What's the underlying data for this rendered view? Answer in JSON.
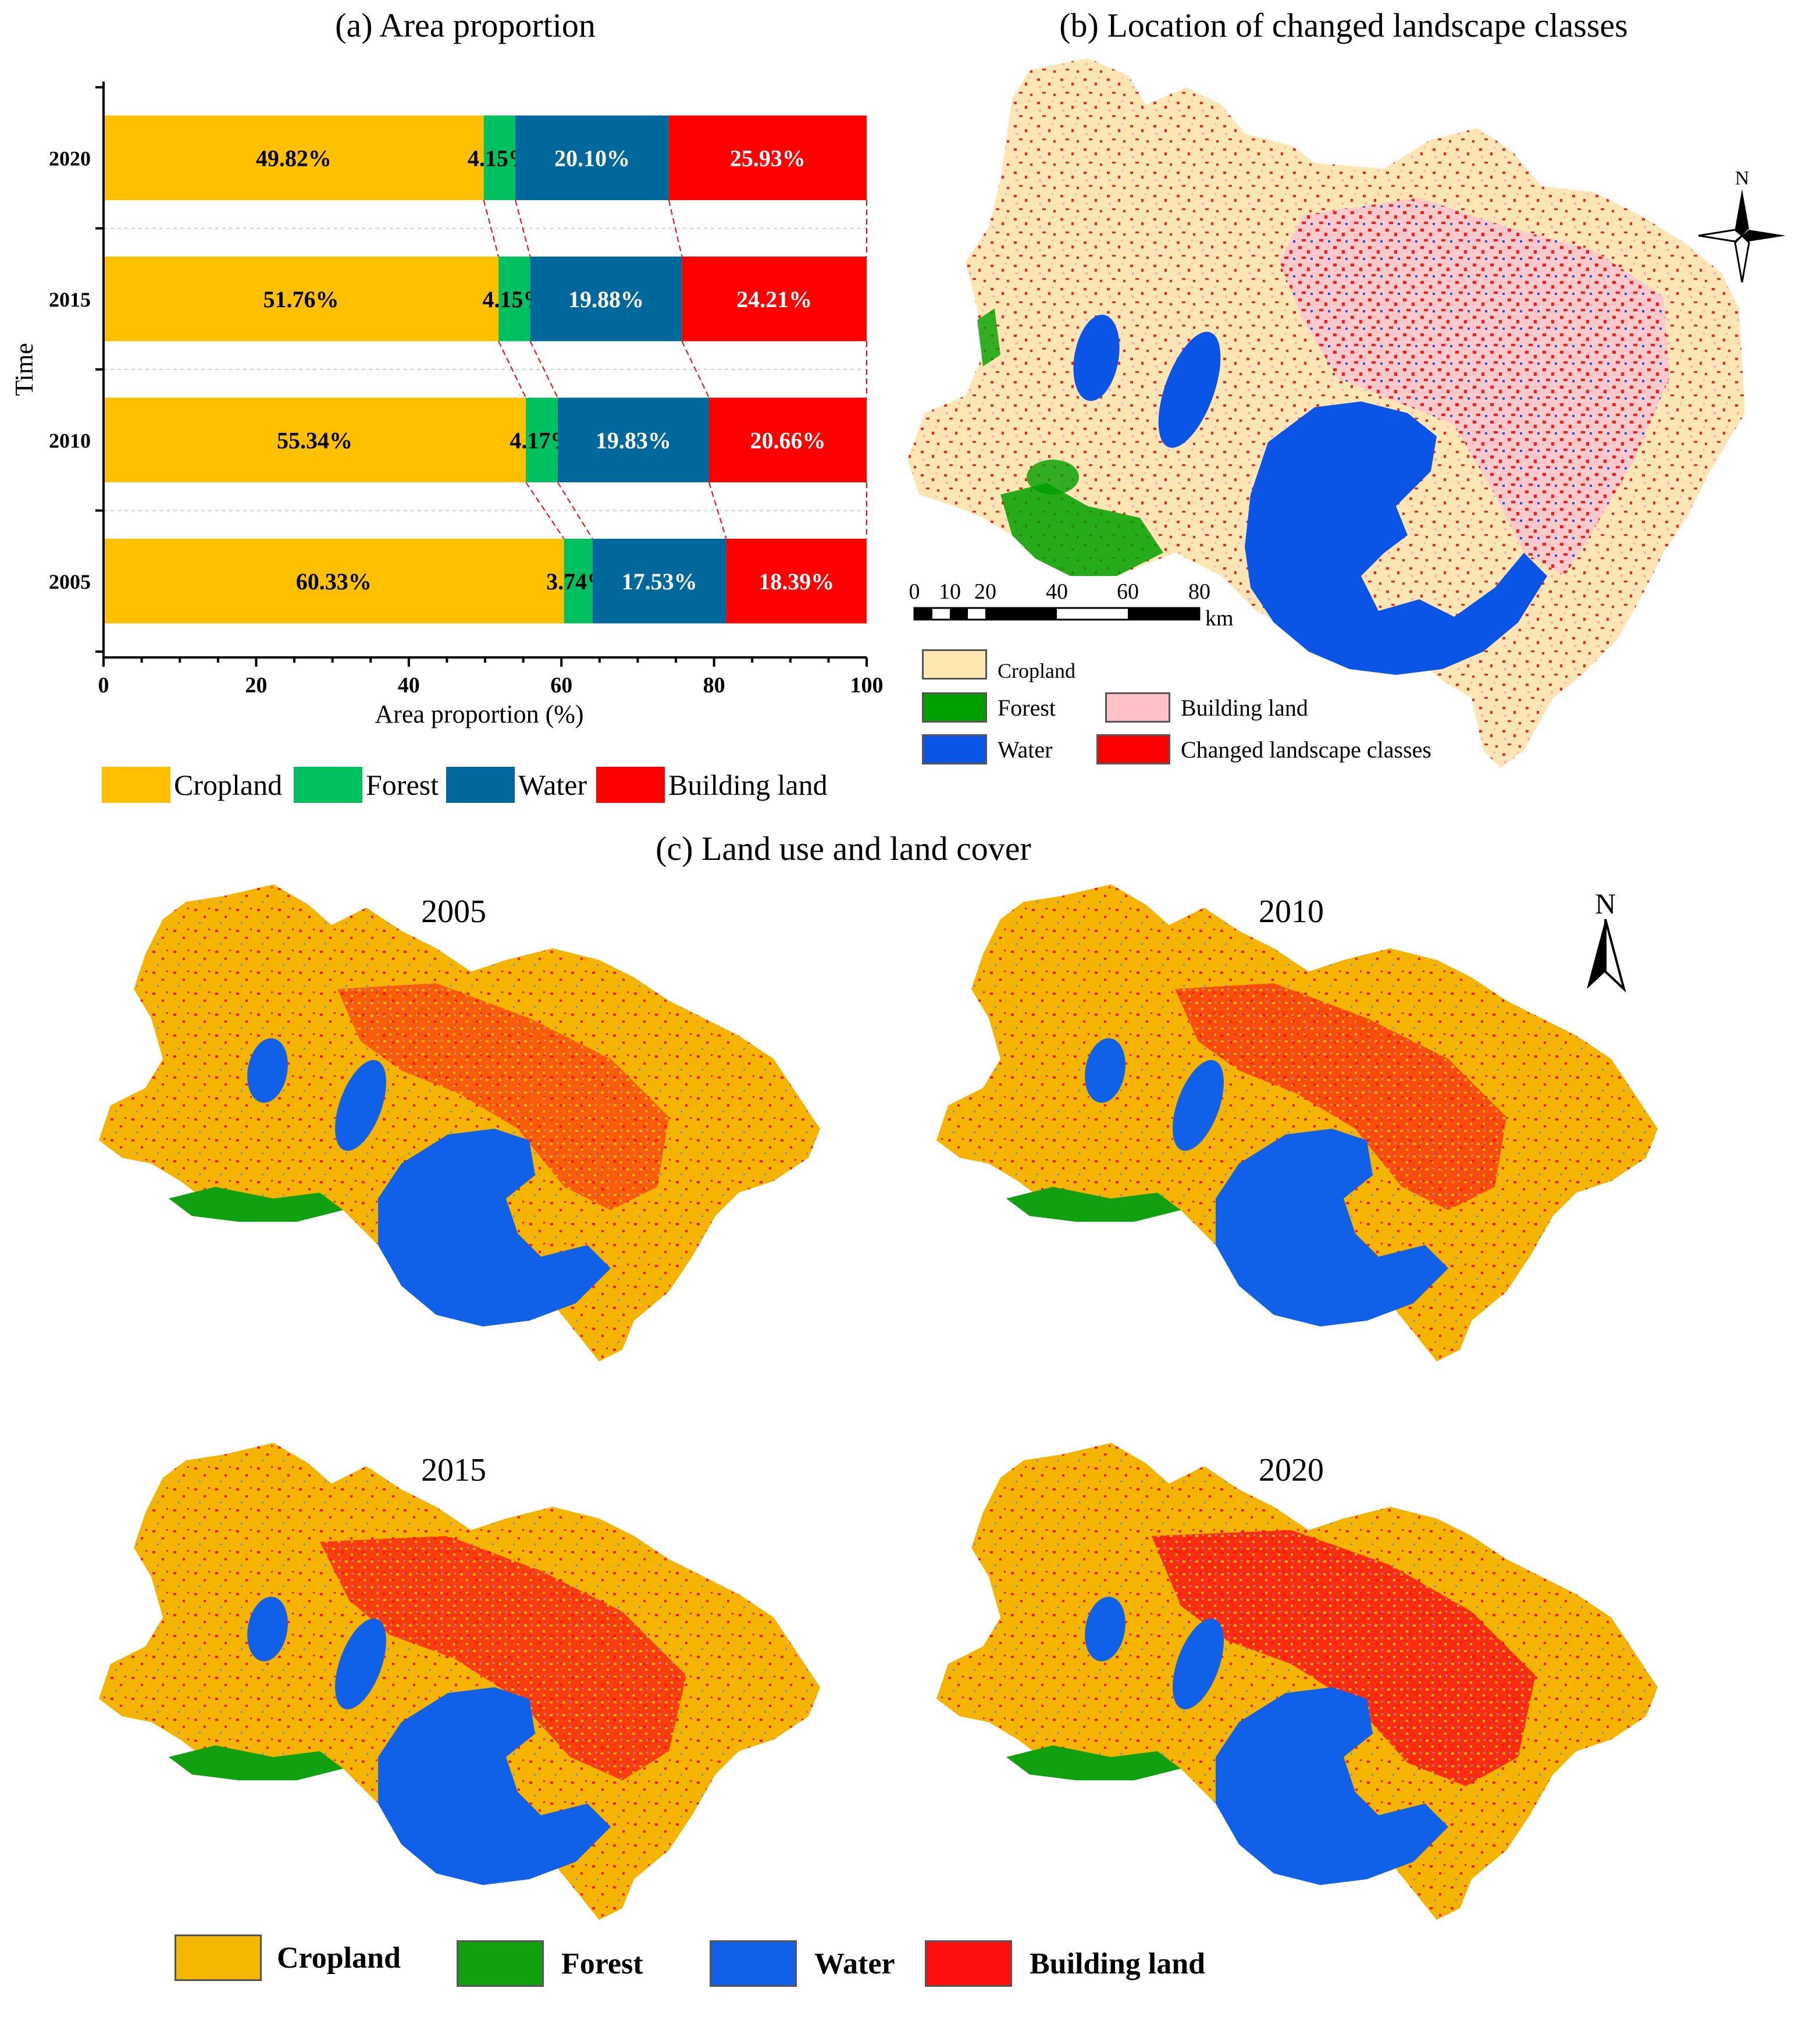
{
  "panel_a": {
    "title": "(a) Area proportion",
    "legend": [
      {
        "label": "Cropland",
        "color": "#ffc000"
      },
      {
        "label": "Forest",
        "color": "#00c060"
      },
      {
        "label": "Water",
        "color": "#00689a"
      },
      {
        "label": "Building land",
        "color": "#ff0000"
      }
    ]
  },
  "chart_data": {
    "type": "bar",
    "orientation": "horizontal",
    "stacked": true,
    "title": "(a) Area proportion",
    "xlabel": "Area proportion (%)",
    "ylabel": "Time",
    "xlim": [
      0,
      100
    ],
    "x_ticks": [
      "0",
      "20",
      "40",
      "60",
      "80",
      "100"
    ],
    "categories": [
      "2020",
      "2015",
      "2010",
      "2005"
    ],
    "series": [
      {
        "name": "Cropland",
        "color": "#ffc000",
        "values": [
          49.82,
          51.76,
          55.34,
          60.33
        ],
        "labels": [
          "49.82%",
          "51.76%",
          "55.34%",
          "60.33%"
        ],
        "label_color": "#000000"
      },
      {
        "name": "Forest",
        "color": "#00c060",
        "values": [
          4.15,
          4.15,
          4.17,
          3.74
        ],
        "labels": [
          "4.15%",
          "4.15%",
          "4.17%",
          "3.74%"
        ],
        "label_color": "#000000"
      },
      {
        "name": "Water",
        "color": "#00689a",
        "values": [
          20.1,
          19.88,
          19.83,
          17.53
        ],
        "labels": [
          "20.10%",
          "19.88%",
          "19.83%",
          "17.53%"
        ],
        "label_color": "#ffffff"
      },
      {
        "name": "Building land",
        "color": "#ff0000",
        "values": [
          25.93,
          24.21,
          20.66,
          18.39
        ],
        "labels": [
          "25.93%",
          "24.21%",
          "20.66%",
          "18.39%"
        ],
        "label_color": "#ffffff"
      }
    ],
    "grid": false,
    "legend_position": "bottom"
  },
  "panel_b": {
    "title": "(b) Location of changed landscape classes",
    "north_label": "N",
    "scale": {
      "ticks": [
        "0",
        "10",
        "20",
        "40",
        "60",
        "80"
      ],
      "unit": "km"
    },
    "legend": [
      {
        "label": "Cropland",
        "color": "#ffe8b0"
      },
      {
        "label": "Forest",
        "color": "#00a000"
      },
      {
        "label": "Building land",
        "color": "#ffc0c8"
      },
      {
        "label": "Water",
        "color": "#0a55e6"
      },
      {
        "label": "Changed landscape classes",
        "color": "#ff0000"
      }
    ]
  },
  "panel_c": {
    "title": "(c) Land use and land cover",
    "north_label": "N",
    "maps": [
      {
        "year": "2005"
      },
      {
        "year": "2010"
      },
      {
        "year": "2015"
      },
      {
        "year": "2020"
      }
    ],
    "legend": [
      {
        "label": "Cropland",
        "color": "#f5b800"
      },
      {
        "label": "Forest",
        "color": "#10a010"
      },
      {
        "label": "Water",
        "color": "#1060e8"
      },
      {
        "label": "Building land",
        "color": "#ff1010"
      }
    ]
  }
}
